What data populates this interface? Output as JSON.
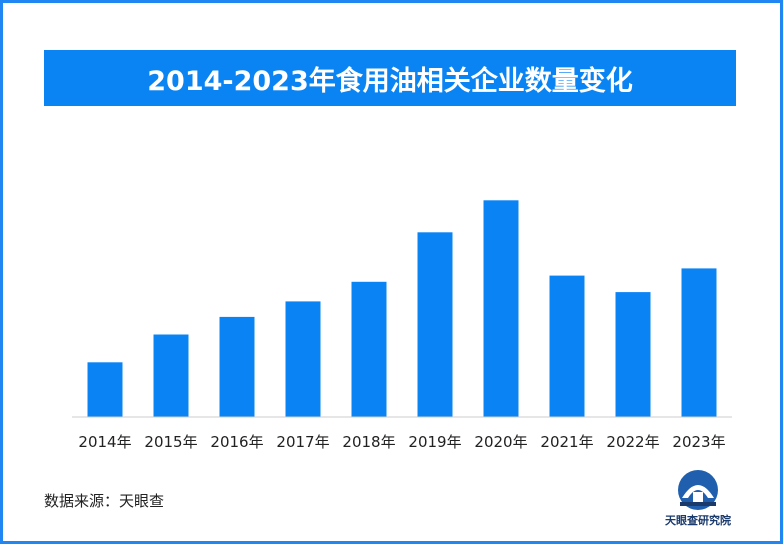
{
  "colors": {
    "frame": "#1f86f2",
    "title_banner": "#0b84f3",
    "bar": "#0a84f5",
    "axis": "#cccccc",
    "logo_blue": "#1f5fae",
    "logo_dark": "#1a3a6b"
  },
  "source": {
    "text": "数据来源：天眼查"
  },
  "logo": {
    "icon": "tianyancha-logo-icon",
    "text": "天眼查研究院"
  },
  "chart_data": {
    "type": "bar",
    "title": "2014-2023年食用油相关企业数量变化",
    "xlabel": "",
    "ylabel": "",
    "categories": [
      "2014年",
      "2015年",
      "2016年",
      "2017年",
      "2018年",
      "2019年",
      "2020年",
      "2021年",
      "2022年",
      "2023年"
    ],
    "values": [
      53,
      80,
      97,
      112,
      131,
      179,
      210,
      137,
      121,
      144
    ],
    "ylim": [
      0,
      220
    ],
    "grid": false,
    "legend": "none"
  }
}
